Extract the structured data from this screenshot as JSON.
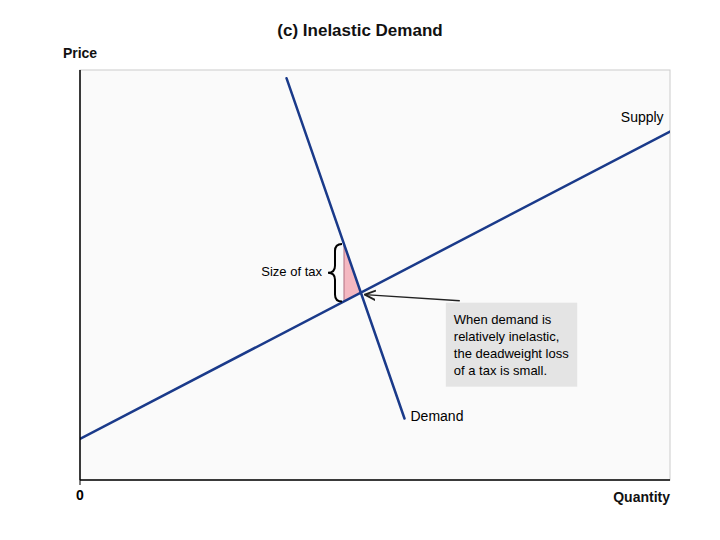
{
  "chart_data": {
    "type": "line",
    "title": "(c) Inelastic Demand",
    "x_label": "Quantity",
    "y_label": "Price",
    "xlim": [
      0,
      10
    ],
    "ylim": [
      0,
      10
    ],
    "xticks": [
      0
    ],
    "tick_labels": "x",
    "grid": false,
    "series": [
      {
        "name": "Supply",
        "color": "#1a3a8a",
        "x": [
          0.0,
          10.0
        ],
        "values": [
          1.0,
          8.5
        ]
      },
      {
        "name": "Demand",
        "color": "#1a3a8a",
        "x": [
          3.5,
          5.5
        ],
        "values": [
          9.8,
          1.5
        ]
      }
    ],
    "deadweight_loss": {
      "color": "#f4b8c1",
      "x": [
        4.47449,
        4.47449,
        4.760204
      ],
      "values": [
        5.755867,
        4.355867,
        4.570153
      ]
    },
    "tax": 1.4,
    "annotations": [
      {
        "text": "Size of tax"
      },
      {
        "text": "When demand is\nrelatively inelastic,\nthe deadweight loss\nof a tax is small."
      }
    ]
  }
}
